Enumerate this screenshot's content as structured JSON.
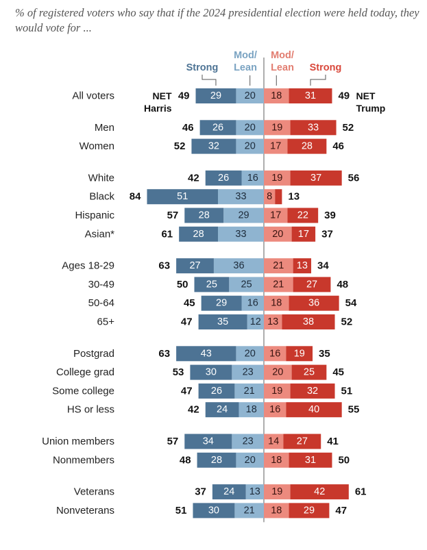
{
  "subtitle": "% of registered voters who say that if the 2024 presidential election were held today, they would vote for ...",
  "colors": {
    "harris_strong": "#4d7394",
    "harris_lean": "#8fb4d0",
    "trump_lean": "#ec8a7e",
    "trump_strong": "#c8382c",
    "harris_text": "#4d7394",
    "harris_lean_text": "#7aa3c2",
    "trump_lean_text": "#e27d70",
    "trump_text": "#d9473a",
    "axis": "#777777"
  },
  "chart_data": {
    "type": "diverging-stacked-bar",
    "title": "% of registered voters who say that if the 2024 presidential election were held today, they would vote for ...",
    "headers": {
      "harris_strong": "Strong",
      "harris_lean": [
        "Mod/",
        "Lean"
      ],
      "trump_lean": [
        "Mod/",
        "Lean"
      ],
      "trump_strong": "Strong",
      "net_harris": [
        "NET",
        "Harris"
      ],
      "net_trump": [
        "NET",
        "Trump"
      ]
    },
    "series": [
      {
        "name": "Harris Strong",
        "side": "left"
      },
      {
        "name": "Harris Mod/Lean",
        "side": "left"
      },
      {
        "name": "Trump Mod/Lean",
        "side": "right"
      },
      {
        "name": "Trump Strong",
        "side": "right"
      }
    ],
    "groups": [
      [
        {
          "label": "All voters",
          "net_harris": 49,
          "harris_strong": 29,
          "harris_lean": 20,
          "trump_lean": 18,
          "trump_strong": 31,
          "net_trump": 49
        }
      ],
      [
        {
          "label": "Men",
          "net_harris": 46,
          "harris_strong": 26,
          "harris_lean": 20,
          "trump_lean": 19,
          "trump_strong": 33,
          "net_trump": 52
        },
        {
          "label": "Women",
          "net_harris": 52,
          "harris_strong": 32,
          "harris_lean": 20,
          "trump_lean": 17,
          "trump_strong": 28,
          "net_trump": 46
        }
      ],
      [
        {
          "label": "White",
          "net_harris": 42,
          "harris_strong": 26,
          "harris_lean": 16,
          "trump_lean": 19,
          "trump_strong": 37,
          "net_trump": 56
        },
        {
          "label": "Black",
          "net_harris": 84,
          "harris_strong": 51,
          "harris_lean": 33,
          "trump_lean": 8,
          "trump_strong": 5,
          "net_trump": 13
        },
        {
          "label": "Hispanic",
          "net_harris": 57,
          "harris_strong": 28,
          "harris_lean": 29,
          "trump_lean": 17,
          "trump_strong": 22,
          "net_trump": 39
        },
        {
          "label": "Asian*",
          "net_harris": 61,
          "harris_strong": 28,
          "harris_lean": 33,
          "trump_lean": 20,
          "trump_strong": 17,
          "net_trump": 37
        }
      ],
      [
        {
          "label": "Ages 18-29",
          "net_harris": 63,
          "harris_strong": 27,
          "harris_lean": 36,
          "trump_lean": 21,
          "trump_strong": 13,
          "net_trump": 34
        },
        {
          "label": "30-49",
          "net_harris": 50,
          "harris_strong": 25,
          "harris_lean": 25,
          "trump_lean": 21,
          "trump_strong": 27,
          "net_trump": 48
        },
        {
          "label": "50-64",
          "net_harris": 45,
          "harris_strong": 29,
          "harris_lean": 16,
          "trump_lean": 18,
          "trump_strong": 36,
          "net_trump": 54
        },
        {
          "label": "65+",
          "net_harris": 47,
          "harris_strong": 35,
          "harris_lean": 12,
          "trump_lean": 13,
          "trump_strong": 38,
          "net_trump": 52
        }
      ],
      [
        {
          "label": "Postgrad",
          "net_harris": 63,
          "harris_strong": 43,
          "harris_lean": 20,
          "trump_lean": 16,
          "trump_strong": 19,
          "net_trump": 35
        },
        {
          "label": "College grad",
          "net_harris": 53,
          "harris_strong": 30,
          "harris_lean": 23,
          "trump_lean": 20,
          "trump_strong": 25,
          "net_trump": 45
        },
        {
          "label": "Some college",
          "net_harris": 47,
          "harris_strong": 26,
          "harris_lean": 21,
          "trump_lean": 19,
          "trump_strong": 32,
          "net_trump": 51
        },
        {
          "label": "HS or less",
          "net_harris": 42,
          "harris_strong": 24,
          "harris_lean": 18,
          "trump_lean": 16,
          "trump_strong": 40,
          "net_trump": 55
        }
      ],
      [
        {
          "label": "Union members",
          "net_harris": 57,
          "harris_strong": 34,
          "harris_lean": 23,
          "trump_lean": 14,
          "trump_strong": 27,
          "net_trump": 41
        },
        {
          "label": "Nonmembers",
          "net_harris": 48,
          "harris_strong": 28,
          "harris_lean": 20,
          "trump_lean": 18,
          "trump_strong": 31,
          "net_trump": 50
        }
      ],
      [
        {
          "label": "Veterans",
          "net_harris": 37,
          "harris_strong": 24,
          "harris_lean": 13,
          "trump_lean": 19,
          "trump_strong": 42,
          "net_trump": 61
        },
        {
          "label": "Nonveterans",
          "net_harris": 51,
          "harris_strong": 30,
          "harris_lean": 21,
          "trump_lean": 18,
          "trump_strong": 29,
          "net_trump": 47
        }
      ]
    ],
    "hidden_value_labels": [
      "Black.trump_strong"
    ]
  }
}
